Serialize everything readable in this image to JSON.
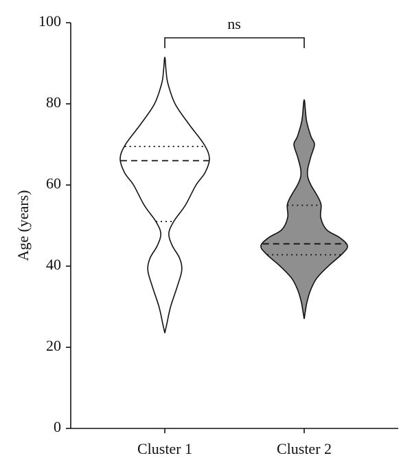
{
  "chart_data": {
    "type": "violin",
    "ylabel": "Age (years)",
    "categories": [
      "Cluster 1",
      "Cluster 2"
    ],
    "ylim": [
      0,
      100
    ],
    "yticks": [
      0,
      20,
      40,
      60,
      80,
      100
    ],
    "annotation": "ns",
    "violins": [
      {
        "color": "#ffffff",
        "median": 66,
        "q1": 51,
        "q3": 69.5,
        "y": [
          23.5,
          26,
          30,
          35,
          39,
          42,
          45,
          48,
          51,
          55,
          60,
          63,
          66.5,
          70,
          75,
          80,
          85,
          88,
          91.5
        ],
        "density": [
          0,
          0.05,
          0.13,
          0.28,
          0.38,
          0.33,
          0.17,
          0.09,
          0.2,
          0.46,
          0.7,
          0.9,
          1.0,
          0.88,
          0.54,
          0.23,
          0.07,
          0.03,
          0
        ]
      },
      {
        "color": "#8f8f8f",
        "median": 45.5,
        "q1": 42.8,
        "q3": 55,
        "y": [
          27,
          31,
          34,
          37,
          40,
          43,
          45,
          47,
          49,
          52,
          55,
          57,
          60,
          62,
          64,
          67,
          70,
          72,
          76,
          81
        ],
        "density": [
          0,
          0.06,
          0.14,
          0.28,
          0.54,
          0.85,
          0.97,
          0.8,
          0.5,
          0.37,
          0.38,
          0.31,
          0.15,
          0.08,
          0.08,
          0.15,
          0.23,
          0.15,
          0.05,
          0
        ]
      }
    ]
  }
}
